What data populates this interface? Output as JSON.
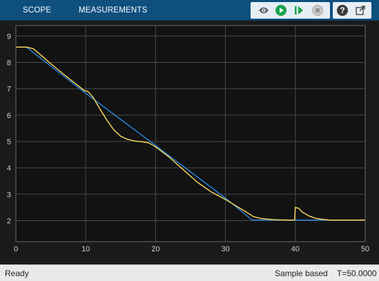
{
  "toolbar": {
    "tabs": [
      {
        "label": "SCOPE"
      },
      {
        "label": "MEASUREMENTS"
      }
    ],
    "buttons": [
      {
        "icon": "configure-settings-icon"
      },
      {
        "icon": "run-icon"
      },
      {
        "icon": "step-forward-icon"
      },
      {
        "icon": "stop-icon"
      },
      {
        "icon": "help-icon"
      },
      {
        "icon": "undock-icon"
      }
    ]
  },
  "status": {
    "state": "Ready",
    "mode": "Sample based",
    "time": "T=50.0000"
  },
  "colors": {
    "toolbar_bg": "#0e4f7e",
    "plot_bg": "#121212",
    "grid": "#4a4a4a",
    "axis_text": "#d0d0d0",
    "series_reference": "#2a83d6",
    "series_response": "#f2d35b"
  },
  "chart_data": {
    "type": "line",
    "title": "",
    "xlabel": "",
    "ylabel": "",
    "xlim": [
      0,
      50
    ],
    "ylim": [
      1.2,
      9.4
    ],
    "x_ticks": [
      0,
      10,
      20,
      30,
      40,
      50
    ],
    "y_ticks": [
      2,
      3,
      4,
      5,
      6,
      7,
      8,
      9
    ],
    "grid": true,
    "series": [
      {
        "color": "#2a83d6",
        "x": [
          0,
          1.5,
          10,
          20,
          30,
          33.8,
          50
        ],
        "y": [
          8.58,
          8.58,
          6.83,
          4.85,
          2.85,
          2.02,
          2.02
        ]
      },
      {
        "color": "#f2d35b",
        "x": [
          0,
          1.6,
          2.5,
          3.5,
          5,
          7,
          9,
          9.8,
          10.3,
          11,
          12,
          13,
          14,
          15,
          16,
          17,
          18,
          19,
          20,
          22,
          24,
          26,
          28,
          30,
          31,
          32,
          33,
          34,
          35,
          37,
          39,
          39.9,
          40,
          40.5,
          41,
          42,
          43,
          44,
          45,
          47,
          50
        ],
        "y": [
          8.58,
          8.58,
          8.52,
          8.3,
          7.95,
          7.52,
          7.1,
          6.93,
          6.9,
          6.7,
          6.25,
          5.82,
          5.45,
          5.2,
          5.08,
          5.02,
          4.99,
          4.95,
          4.8,
          4.4,
          3.92,
          3.45,
          3.08,
          2.8,
          2.64,
          2.48,
          2.32,
          2.15,
          2.08,
          2.03,
          2.02,
          2.02,
          2.5,
          2.46,
          2.32,
          2.17,
          2.08,
          2.04,
          2.02,
          2.02,
          2.02
        ]
      }
    ]
  }
}
